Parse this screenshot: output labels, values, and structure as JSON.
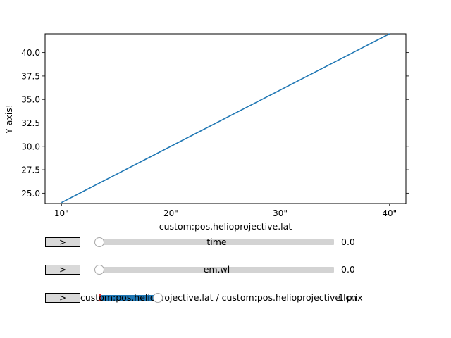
{
  "plot": {
    "xlabel": "custom:pos.helioprojective.lat",
    "ylabel": "Y axis!",
    "x_tick_labels": [
      "10\"",
      "20\"",
      "30\"",
      "40\""
    ],
    "y_tick_labels": [
      "25.0",
      "27.5",
      "30.0",
      "32.5",
      "35.0",
      "37.5",
      "40.0"
    ],
    "line_color": "#1f77b4"
  },
  "chart_data": {
    "type": "line",
    "title": "",
    "xlabel": "custom:pos.helioprojective.lat",
    "ylabel": "Y axis!",
    "x_tick_values": [
      10,
      20,
      30,
      40
    ],
    "y_tick_values": [
      25.0,
      27.5,
      30.0,
      32.5,
      35.0,
      37.5,
      40.0
    ],
    "xlim": [
      8.5,
      41.5
    ],
    "ylim": [
      23.9,
      42.0
    ],
    "grid": false,
    "series": [
      {
        "x": [
          10,
          40
        ],
        "y": [
          24.0,
          42.0
        ]
      }
    ]
  },
  "controls": [
    {
      "button_label": ">",
      "slider_label": "time",
      "value_text": "0.0",
      "position": 0.0
    },
    {
      "button_label": ">",
      "slider_label": "em.wl",
      "value_text": "0.0",
      "position": 0.0
    },
    {
      "button_label": ">",
      "slider_label": "custom:pos.helioprojective.lat / custom:pos.helioprojective.lon",
      "value_text": "1 p.ix",
      "range_start": 0.0,
      "range_end": 0.25
    }
  ]
}
